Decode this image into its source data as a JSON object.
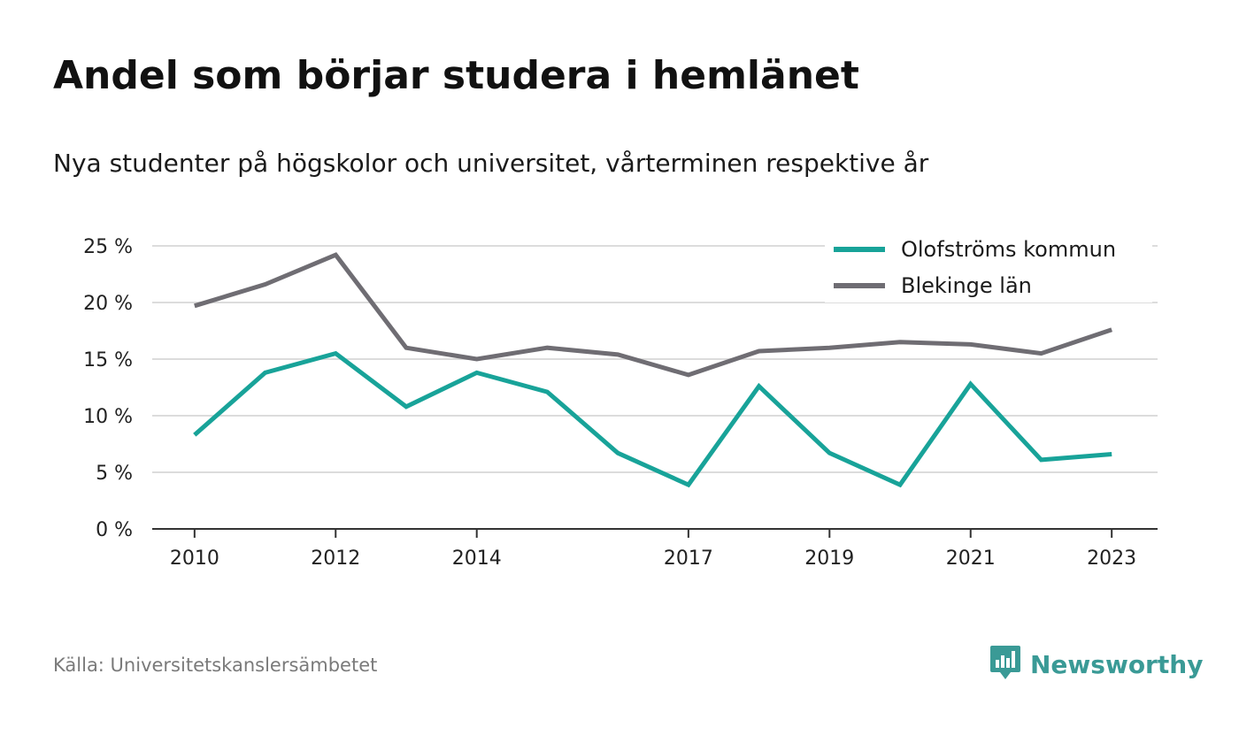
{
  "title": "Andel som börjar studera i hemlänet",
  "subtitle": "Nya studenter på högskolor och universitet, vårterminen respektive år",
  "source": "Källa: Universitetskanslersämbetet",
  "brand": {
    "name": "Newsworthy",
    "icon": "newsworthy-logo-icon",
    "color": "#3a9a96"
  },
  "chart_data": {
    "type": "line",
    "title": "Andel som börjar studera i hemlänet",
    "subtitle": "Nya studenter på högskolor och universitet, vårterminen respektive år",
    "x": [
      2010,
      2011,
      2012,
      2013,
      2014,
      2015,
      2016,
      2017,
      2018,
      2019,
      2020,
      2021,
      2022,
      2023
    ],
    "x_tick_labels": [
      "2010",
      "2012",
      "2014",
      "2017",
      "2019",
      "2021",
      "2023"
    ],
    "x_tick_values": [
      2010,
      2012,
      2014,
      2017,
      2019,
      2021,
      2023
    ],
    "y_tick_labels": [
      "0 %",
      "5 %",
      "10 %",
      "15 %",
      "20 %",
      "25 %"
    ],
    "y_tick_values": [
      0,
      5,
      10,
      15,
      20,
      25
    ],
    "ylim": [
      0,
      25
    ],
    "xlim": [
      2009.4,
      2023.65
    ],
    "grid": true,
    "legend_position": "top-right",
    "series": [
      {
        "name": "Olofströms kommun",
        "color": "#18a399",
        "values": [
          8.3,
          13.8,
          15.5,
          10.8,
          13.8,
          12.1,
          6.7,
          3.9,
          12.6,
          6.7,
          3.9,
          12.8,
          6.1,
          6.6
        ]
      },
      {
        "name": "Blekinge län",
        "color": "#6f6d73",
        "values": [
          19.7,
          21.6,
          24.2,
          16.0,
          15.0,
          16.0,
          15.4,
          13.6,
          15.7,
          16.0,
          16.5,
          16.3,
          15.5,
          17.6
        ]
      }
    ]
  }
}
